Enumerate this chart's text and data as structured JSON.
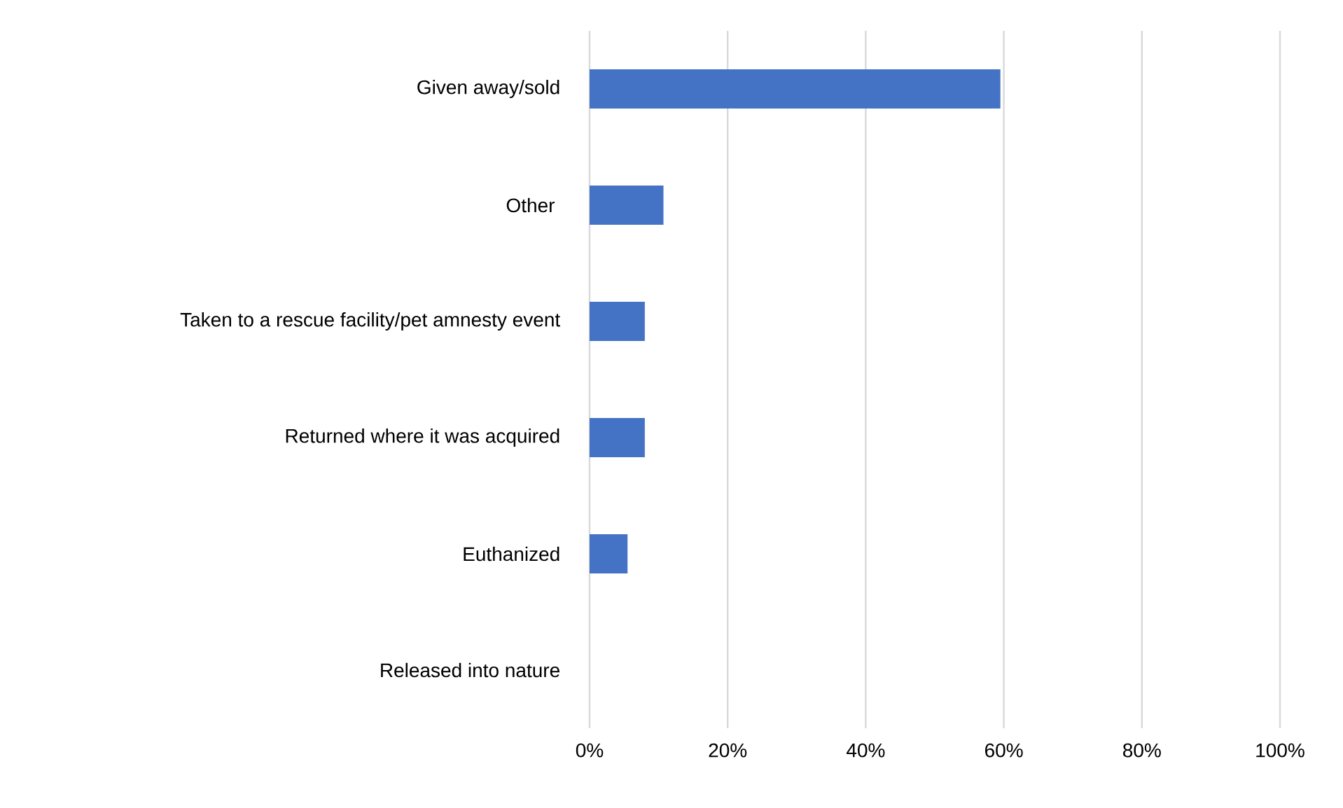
{
  "chart_data": {
    "type": "bar",
    "orientation": "horizontal",
    "categories": [
      "Given away/sold",
      "Other ",
      "Taken to a rescue facility/pet amnesty event",
      "Returned where it was acquired",
      "Euthanized",
      "Released into nature"
    ],
    "values": [
      59.5,
      10.7,
      8.0,
      8.0,
      5.5,
      0
    ],
    "color": "#4472c4",
    "xlim": [
      0,
      100
    ],
    "xticks": [
      {
        "value": 0,
        "label": "0%"
      },
      {
        "value": 20,
        "label": "20%"
      },
      {
        "value": 40,
        "label": "40%"
      },
      {
        "value": 60,
        "label": "60%"
      },
      {
        "value": 80,
        "label": "80%"
      },
      {
        "value": 100,
        "label": "100%"
      }
    ],
    "grid": "x"
  }
}
